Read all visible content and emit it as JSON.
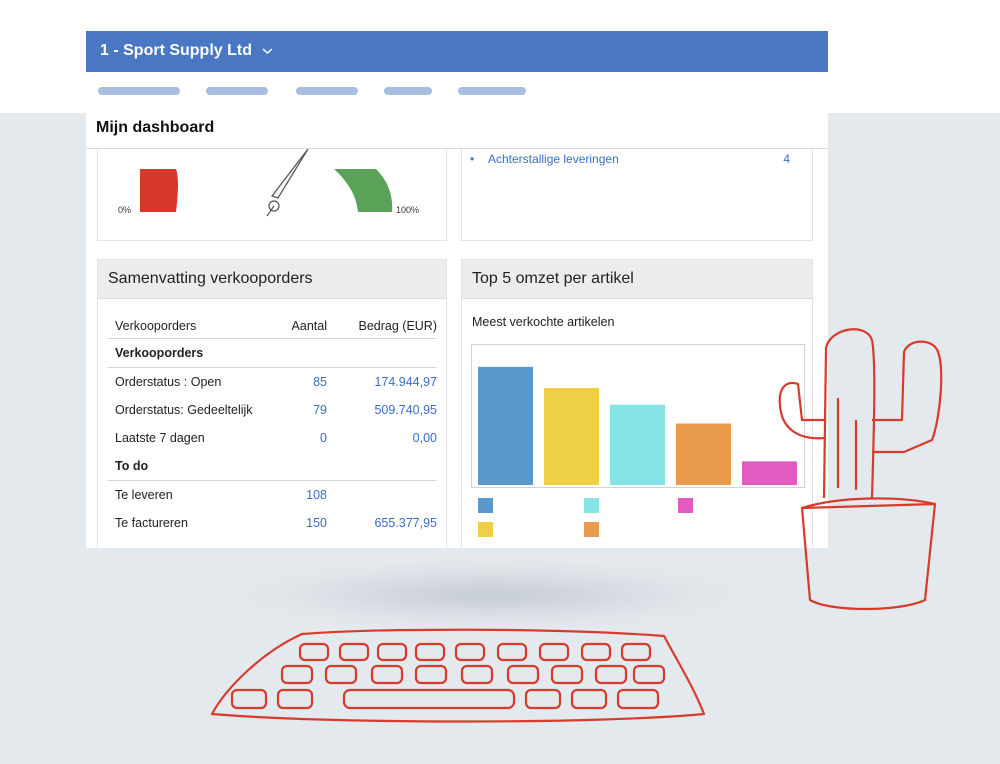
{
  "header": {
    "company": "1 - Sport Supply Ltd",
    "dropdown_icon": "chevron-down-icon"
  },
  "nav": {
    "items": [
      "",
      "",
      "",
      "",
      ""
    ]
  },
  "dashboard": {
    "title": "Mijn dashboard"
  },
  "gauge": {
    "min_label": "0%",
    "max_label": "100%",
    "colors": {
      "low": "#d7382c",
      "high": "#5aa257"
    }
  },
  "links": {
    "items": [
      {
        "label": "Achterstallige leveringen",
        "count": "4"
      }
    ]
  },
  "sales_summary": {
    "title": "Samenvatting verkooporders",
    "columns": [
      "Verkooporders",
      "Aantal",
      "Bedrag (EUR)"
    ],
    "sections": [
      {
        "title": "Verkooporders",
        "rows": [
          {
            "label": "Orderstatus : Open",
            "count": "85",
            "amount": "174.944,97"
          },
          {
            "label": "Orderstatus: Gedeeltelijk",
            "count": "79",
            "amount": "509.740,95"
          },
          {
            "label": "Laatste 7 dagen",
            "count": "0",
            "amount": "0,00"
          }
        ]
      },
      {
        "title": "To do",
        "rows": [
          {
            "label": "Te leveren",
            "count": "108",
            "amount": ""
          },
          {
            "label": "Te factureren",
            "count": "150",
            "amount": "655.377,95"
          }
        ]
      }
    ]
  },
  "top5": {
    "title": "Top 5 omzet per artikel"
  },
  "chart_data": {
    "type": "bar",
    "title": "Meest verkochte artikelen",
    "categories": [
      "",
      "",
      "",
      "",
      ""
    ],
    "values": [
      100,
      82,
      68,
      52,
      20
    ],
    "colors": [
      "#5b98cb",
      "#efcf45",
      "#86e4e6",
      "#ea9a4c",
      "#e15bc0"
    ],
    "ylim": [
      0,
      110
    ],
    "grid": false,
    "legend": "bottom"
  },
  "decor": {
    "colors": {
      "line": "#d73b2c",
      "background": "#e4e9ed",
      "brand": "#4a77c3"
    }
  }
}
